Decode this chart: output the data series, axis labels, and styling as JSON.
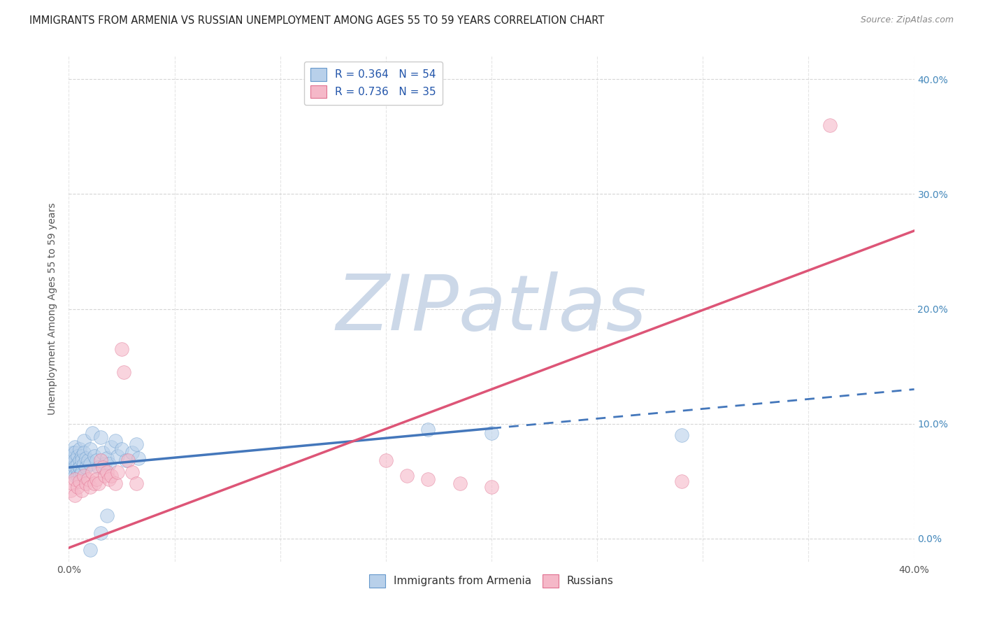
{
  "title": "IMMIGRANTS FROM ARMENIA VS RUSSIAN UNEMPLOYMENT AMONG AGES 55 TO 59 YEARS CORRELATION CHART",
  "source": "Source: ZipAtlas.com",
  "ylabel": "Unemployment Among Ages 55 to 59 years",
  "xlim": [
    0.0,
    0.4
  ],
  "ylim": [
    -0.02,
    0.42
  ],
  "xtick_positions": [
    0.0,
    0.05,
    0.1,
    0.15,
    0.2,
    0.25,
    0.3,
    0.35,
    0.4
  ],
  "xtick_labels_show": [
    "0.0%",
    "",
    "",
    "",
    "",
    "",
    "",
    "",
    "40.0%"
  ],
  "yticks": [
    0.0,
    0.1,
    0.2,
    0.3,
    0.4
  ],
  "ytick_labels": [
    "0.0%",
    "10.0%",
    "20.0%",
    "30.0%",
    "40.0%"
  ],
  "R_blue": 0.364,
  "N_blue": 54,
  "R_pink": 0.736,
  "N_pink": 35,
  "blue_fill": "#b8d0ea",
  "blue_edge": "#6699cc",
  "pink_fill": "#f5b8c8",
  "pink_edge": "#e07090",
  "blue_line_color": "#4477bb",
  "pink_line_color": "#dd5577",
  "watermark": "ZIPatlas",
  "watermark_color": "#ccd8e8",
  "blue_scatter": [
    [
      0.001,
      0.072
    ],
    [
      0.001,
      0.068
    ],
    [
      0.001,
      0.065
    ],
    [
      0.002,
      0.075
    ],
    [
      0.002,
      0.07
    ],
    [
      0.002,
      0.062
    ],
    [
      0.002,
      0.058
    ],
    [
      0.003,
      0.08
    ],
    [
      0.003,
      0.075
    ],
    [
      0.003,
      0.068
    ],
    [
      0.003,
      0.062
    ],
    [
      0.003,
      0.055
    ],
    [
      0.004,
      0.072
    ],
    [
      0.004,
      0.065
    ],
    [
      0.004,
      0.06
    ],
    [
      0.004,
      0.055
    ],
    [
      0.005,
      0.078
    ],
    [
      0.005,
      0.068
    ],
    [
      0.005,
      0.062
    ],
    [
      0.005,
      0.055
    ],
    [
      0.006,
      0.072
    ],
    [
      0.006,
      0.068
    ],
    [
      0.006,
      0.058
    ],
    [
      0.007,
      0.085
    ],
    [
      0.007,
      0.075
    ],
    [
      0.007,
      0.065
    ],
    [
      0.008,
      0.07
    ],
    [
      0.008,
      0.062
    ],
    [
      0.009,
      0.068
    ],
    [
      0.01,
      0.078
    ],
    [
      0.01,
      0.065
    ],
    [
      0.011,
      0.092
    ],
    [
      0.012,
      0.072
    ],
    [
      0.013,
      0.068
    ],
    [
      0.014,
      0.062
    ],
    [
      0.015,
      0.088
    ],
    [
      0.016,
      0.075
    ],
    [
      0.017,
      0.065
    ],
    [
      0.018,
      0.07
    ],
    [
      0.019,
      0.065
    ],
    [
      0.02,
      0.08
    ],
    [
      0.022,
      0.085
    ],
    [
      0.023,
      0.072
    ],
    [
      0.025,
      0.078
    ],
    [
      0.027,
      0.068
    ],
    [
      0.03,
      0.075
    ],
    [
      0.032,
      0.082
    ],
    [
      0.033,
      0.07
    ],
    [
      0.17,
      0.095
    ],
    [
      0.2,
      0.092
    ],
    [
      0.01,
      -0.01
    ],
    [
      0.015,
      0.005
    ],
    [
      0.018,
      0.02
    ],
    [
      0.29,
      0.09
    ]
  ],
  "pink_scatter": [
    [
      0.001,
      0.042
    ],
    [
      0.002,
      0.048
    ],
    [
      0.003,
      0.038
    ],
    [
      0.003,
      0.052
    ],
    [
      0.004,
      0.045
    ],
    [
      0.005,
      0.05
    ],
    [
      0.006,
      0.042
    ],
    [
      0.007,
      0.055
    ],
    [
      0.008,
      0.048
    ],
    [
      0.009,
      0.052
    ],
    [
      0.01,
      0.045
    ],
    [
      0.011,
      0.058
    ],
    [
      0.012,
      0.048
    ],
    [
      0.013,
      0.052
    ],
    [
      0.014,
      0.048
    ],
    [
      0.015,
      0.068
    ],
    [
      0.016,
      0.062
    ],
    [
      0.017,
      0.055
    ],
    [
      0.018,
      0.058
    ],
    [
      0.019,
      0.052
    ],
    [
      0.02,
      0.055
    ],
    [
      0.022,
      0.048
    ],
    [
      0.023,
      0.058
    ],
    [
      0.025,
      0.165
    ],
    [
      0.026,
      0.145
    ],
    [
      0.028,
      0.068
    ],
    [
      0.03,
      0.058
    ],
    [
      0.032,
      0.048
    ],
    [
      0.15,
      0.068
    ],
    [
      0.16,
      0.055
    ],
    [
      0.17,
      0.052
    ],
    [
      0.185,
      0.048
    ],
    [
      0.2,
      0.045
    ],
    [
      0.29,
      0.05
    ],
    [
      0.36,
      0.36
    ]
  ],
  "blue_line": {
    "x0": 0.0,
    "y0": 0.062,
    "x1": 0.4,
    "y1": 0.13
  },
  "blue_dash_line": {
    "x0": 0.2,
    "y0": 0.09,
    "x1": 0.4,
    "y1": 0.13
  },
  "pink_line": {
    "x0": 0.0,
    "y0": -0.008,
    "x1": 0.4,
    "y1": 0.268
  },
  "title_fontsize": 10.5,
  "axis_label_fontsize": 10,
  "tick_fontsize": 10,
  "legend_fontsize": 11
}
